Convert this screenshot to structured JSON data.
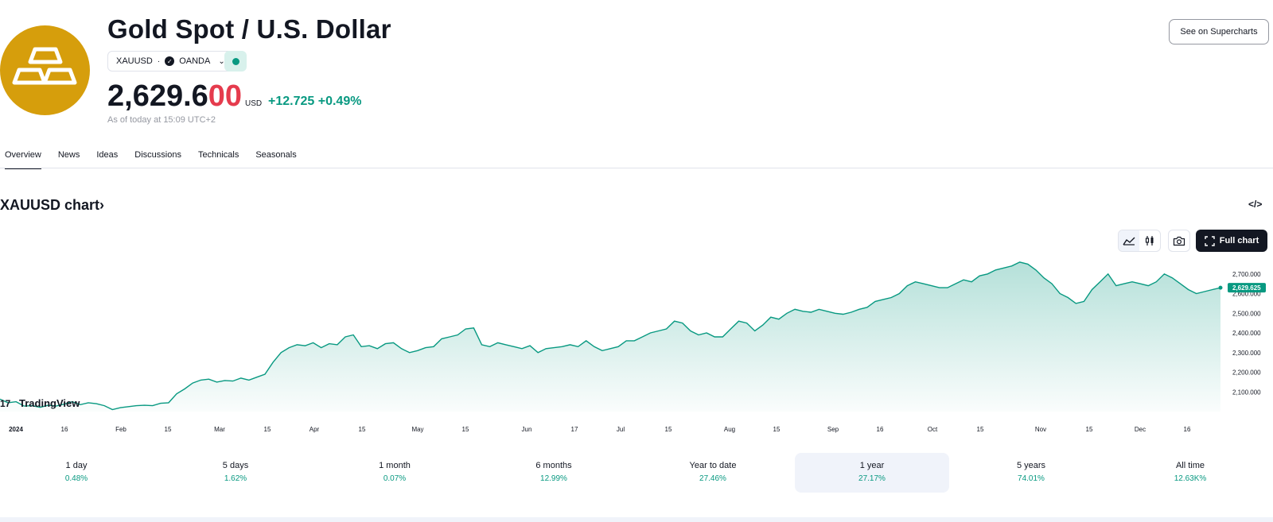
{
  "header": {
    "title": "Gold Spot / U.S. Dollar",
    "symbol": "XAUUSD",
    "separator": "·",
    "exchange": "OANDA",
    "price_main": "2,629.6",
    "price_tail": "00",
    "currency": "USD",
    "change_abs": "+12.725",
    "change_pct": "+0.49%",
    "as_of": "As of today at 15:09 UTC+2",
    "supercharts_label": "See on Supercharts"
  },
  "tabs": [
    "Overview",
    "News",
    "Ideas",
    "Discussions",
    "Technicals",
    "Seasonals"
  ],
  "chart_section": {
    "heading": "XAUUSD chart",
    "heading_chevron": "›",
    "embed_label": "</>",
    "full_chart_label": "Full chart",
    "watermark": "TradingView"
  },
  "colors": {
    "accent": "#089981",
    "price_red": "#e53b4d",
    "gold": "#d69e0c",
    "dark": "#131722"
  },
  "chart_data": {
    "type": "area",
    "x_ticks": [
      "2024",
      "16",
      "Feb",
      "15",
      "Mar",
      "15",
      "Apr",
      "15",
      "May",
      "15",
      "Jun",
      "17",
      "Jul",
      "15",
      "Aug",
      "15",
      "Sep",
      "16",
      "Oct",
      "15",
      "Nov",
      "15",
      "Dec",
      "16"
    ],
    "y_ticks": [
      "2,100.000",
      "2,200.000",
      "2,300.000",
      "2,400.000",
      "2,500.000",
      "2,600.000",
      "2,700.000"
    ],
    "ylim": [
      2000,
      2800
    ],
    "last_value_label": "2,629.625",
    "series": [
      {
        "values": [
          2063,
          2045,
          2050,
          2028,
          2030,
          2022,
          2032,
          2028,
          2038,
          2050,
          2035,
          2045,
          2040,
          2030,
          2010,
          2020,
          2025,
          2030,
          2032,
          2030,
          2042,
          2045,
          2090,
          2115,
          2145,
          2160,
          2165,
          2150,
          2158,
          2155,
          2170,
          2160,
          2175,
          2190,
          2250,
          2300,
          2325,
          2340,
          2335,
          2350,
          2325,
          2345,
          2340,
          2380,
          2390,
          2330,
          2335,
          2320,
          2345,
          2350,
          2320,
          2300,
          2310,
          2325,
          2330,
          2370,
          2380,
          2390,
          2420,
          2425,
          2340,
          2330,
          2350,
          2340,
          2330,
          2320,
          2335,
          2300,
          2320,
          2325,
          2330,
          2340,
          2330,
          2360,
          2330,
          2310,
          2320,
          2330,
          2360,
          2360,
          2380,
          2400,
          2410,
          2420,
          2460,
          2450,
          2410,
          2390,
          2400,
          2380,
          2380,
          2420,
          2460,
          2450,
          2410,
          2440,
          2480,
          2470,
          2500,
          2520,
          2510,
          2505,
          2520,
          2510,
          2500,
          2495,
          2505,
          2520,
          2530,
          2560,
          2570,
          2580,
          2600,
          2640,
          2660,
          2650,
          2640,
          2630,
          2630,
          2650,
          2670,
          2660,
          2690,
          2700,
          2720,
          2730,
          2740,
          2760,
          2750,
          2720,
          2680,
          2650,
          2600,
          2580,
          2550,
          2560,
          2620,
          2660,
          2700,
          2640,
          2650,
          2660,
          2650,
          2640,
          2660,
          2700,
          2680,
          2650,
          2620,
          2600,
          2610,
          2620,
          2629.625
        ]
      }
    ],
    "grid": false,
    "watermark": "TradingView"
  },
  "periods": [
    {
      "label": "1 day",
      "value": "0.48%"
    },
    {
      "label": "5 days",
      "value": "1.62%"
    },
    {
      "label": "1 month",
      "value": "0.07%"
    },
    {
      "label": "6 months",
      "value": "12.99%"
    },
    {
      "label": "Year to date",
      "value": "27.46%"
    },
    {
      "label": "1 year",
      "value": "27.17%",
      "selected": true
    },
    {
      "label": "5 years",
      "value": "74.01%"
    },
    {
      "label": "All time",
      "value": "12.63K%"
    }
  ]
}
